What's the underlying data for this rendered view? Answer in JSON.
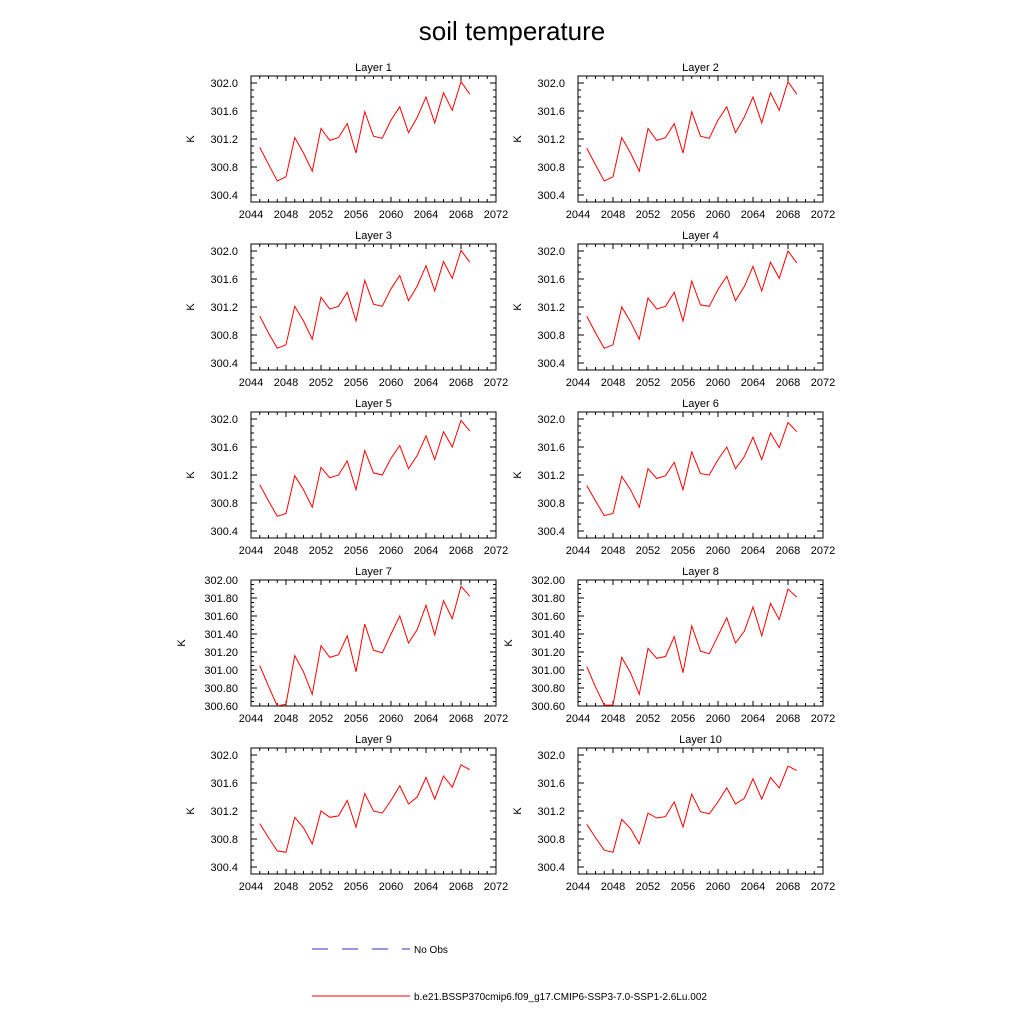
{
  "title": "soil temperature",
  "colors": {
    "model": "#ff0000",
    "obs": "#3030c0"
  },
  "legend": {
    "obs_label": "No Obs",
    "model_label": "b.e21.BSSP370cmip6.f09_g17.CMIP6-SSP3-7.0-SSP1-2.6Lu.002"
  },
  "chart_data": {
    "type": "line",
    "ylabel": "K",
    "xlim": [
      2044,
      2072
    ],
    "x_ticks": [
      "2044",
      "2048",
      "2052",
      "2056",
      "2060",
      "2064",
      "2068",
      "2072"
    ],
    "x": [
      2045,
      2046,
      2047,
      2048,
      2049,
      2050,
      2051,
      2052,
      2053,
      2054,
      2055,
      2056,
      2057,
      2058,
      2059,
      2060,
      2061,
      2062,
      2063,
      2064,
      2065,
      2066,
      2067,
      2068,
      2069
    ],
    "panels": [
      {
        "title": "Layer 1",
        "ylim": [
          300.3,
          302.1
        ],
        "yticks": [
          "300.4",
          "300.8",
          "301.2",
          "301.6",
          "302.0"
        ],
        "values": [
          301.08,
          300.84,
          300.6,
          300.66,
          301.22,
          301.0,
          300.74,
          301.35,
          301.18,
          301.22,
          301.42,
          301.0,
          301.59,
          301.24,
          301.21,
          301.47,
          301.66,
          301.29,
          301.51,
          301.8,
          301.43,
          301.86,
          301.61,
          302.02,
          301.84
        ]
      },
      {
        "title": "Layer 2",
        "ylim": [
          300.3,
          302.1
        ],
        "yticks": [
          "300.4",
          "300.8",
          "301.2",
          "301.6",
          "302.0"
        ],
        "values": [
          301.07,
          300.83,
          300.6,
          300.66,
          301.22,
          301.0,
          300.74,
          301.35,
          301.18,
          301.22,
          301.42,
          301.0,
          301.59,
          301.24,
          301.21,
          301.47,
          301.66,
          301.29,
          301.51,
          301.8,
          301.43,
          301.86,
          301.61,
          302.02,
          301.84
        ]
      },
      {
        "title": "Layer 3",
        "ylim": [
          300.3,
          302.1
        ],
        "yticks": [
          "300.4",
          "300.8",
          "301.2",
          "301.6",
          "302.0"
        ],
        "values": [
          301.07,
          300.83,
          300.61,
          300.66,
          301.21,
          301.0,
          300.74,
          301.34,
          301.17,
          301.21,
          301.41,
          301.0,
          301.58,
          301.24,
          301.21,
          301.46,
          301.65,
          301.29,
          301.5,
          301.79,
          301.43,
          301.85,
          301.61,
          302.01,
          301.84
        ]
      },
      {
        "title": "Layer 4",
        "ylim": [
          300.3,
          302.1
        ],
        "yticks": [
          "300.4",
          "300.8",
          "301.2",
          "301.6",
          "302.0"
        ],
        "values": [
          301.07,
          300.83,
          300.61,
          300.66,
          301.2,
          300.99,
          300.74,
          301.33,
          301.17,
          301.21,
          301.41,
          301.0,
          301.57,
          301.23,
          301.21,
          301.45,
          301.64,
          301.29,
          301.49,
          301.78,
          301.43,
          301.84,
          301.61,
          302.0,
          301.83
        ]
      },
      {
        "title": "Layer 5",
        "ylim": [
          300.3,
          302.1
        ],
        "yticks": [
          "300.4",
          "300.8",
          "301.2",
          "301.6",
          "302.0"
        ],
        "values": [
          301.06,
          300.83,
          300.61,
          300.65,
          301.19,
          300.99,
          300.74,
          301.31,
          301.16,
          301.2,
          301.4,
          300.99,
          301.55,
          301.23,
          301.2,
          301.44,
          301.62,
          301.29,
          301.48,
          301.76,
          301.42,
          301.82,
          301.6,
          301.98,
          301.83
        ]
      },
      {
        "title": "Layer 6",
        "ylim": [
          300.3,
          302.1
        ],
        "yticks": [
          "300.4",
          "300.8",
          "301.2",
          "301.6",
          "302.0"
        ],
        "values": [
          301.05,
          300.83,
          300.62,
          300.65,
          301.18,
          300.99,
          300.74,
          301.29,
          301.15,
          301.19,
          301.38,
          300.99,
          301.53,
          301.22,
          301.2,
          301.42,
          301.6,
          301.29,
          301.46,
          301.74,
          301.42,
          301.8,
          301.59,
          301.95,
          301.82
        ]
      },
      {
        "title": "Layer 7",
        "ylim": [
          300.6,
          302.0
        ],
        "yticks": [
          "300.60",
          "300.80",
          "301.00",
          "301.20",
          "301.40",
          "301.60",
          "301.80",
          "302.00"
        ],
        "values": [
          301.05,
          300.82,
          300.6,
          300.62,
          301.16,
          300.98,
          300.73,
          301.27,
          301.14,
          301.17,
          301.38,
          300.98,
          301.51,
          301.22,
          301.19,
          301.4,
          301.6,
          301.3,
          301.45,
          301.72,
          301.39,
          301.77,
          301.57,
          301.93,
          301.82
        ]
      },
      {
        "title": "Layer 8",
        "ylim": [
          300.6,
          302.0
        ],
        "yticks": [
          "300.60",
          "300.80",
          "301.00",
          "301.20",
          "301.40",
          "301.60",
          "301.80",
          "302.00"
        ],
        "values": [
          301.04,
          300.81,
          300.61,
          300.61,
          301.14,
          300.97,
          300.73,
          301.24,
          301.13,
          301.15,
          301.37,
          300.97,
          301.49,
          301.21,
          301.18,
          301.38,
          301.58,
          301.3,
          301.43,
          301.7,
          301.38,
          301.74,
          301.56,
          301.9,
          301.81
        ]
      },
      {
        "title": "Layer 9",
        "ylim": [
          300.3,
          302.1
        ],
        "yticks": [
          "300.4",
          "300.8",
          "301.2",
          "301.6",
          "302.0"
        ],
        "values": [
          301.02,
          300.82,
          300.63,
          300.61,
          301.11,
          300.96,
          300.73,
          301.2,
          301.11,
          301.13,
          301.35,
          300.97,
          301.45,
          301.2,
          301.17,
          301.35,
          301.56,
          301.3,
          301.4,
          301.68,
          301.37,
          301.7,
          301.54,
          301.86,
          301.79
        ]
      },
      {
        "title": "Layer 10",
        "ylim": [
          300.3,
          302.1
        ],
        "yticks": [
          "300.4",
          "300.8",
          "301.2",
          "301.6",
          "302.0"
        ],
        "values": [
          301.01,
          300.82,
          300.64,
          300.61,
          301.08,
          300.95,
          300.73,
          301.17,
          301.1,
          301.12,
          301.33,
          300.97,
          301.44,
          301.19,
          301.16,
          301.33,
          301.53,
          301.3,
          301.38,
          301.66,
          301.37,
          301.68,
          301.53,
          301.84,
          301.78
        ]
      }
    ]
  }
}
